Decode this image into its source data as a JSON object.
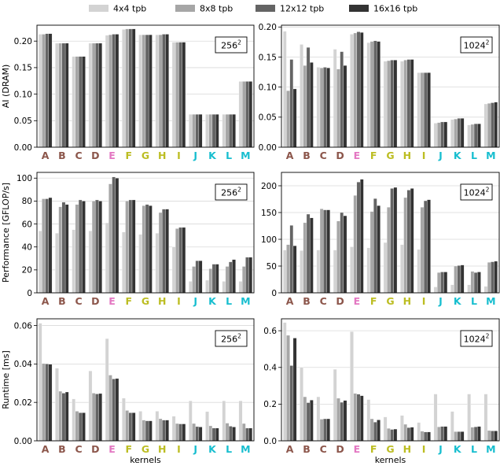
{
  "legend": [
    {
      "label": "4x4 tpb",
      "color": "#d3d3d3"
    },
    {
      "label": "8x8 tpb",
      "color": "#a6a6a6"
    },
    {
      "label": "12x12 tpb",
      "color": "#646464"
    },
    {
      "label": "16x16 tpb",
      "color": "#333333"
    }
  ],
  "x_axis_label": "kernels",
  "row_ylabels": [
    "AI (DRAM)",
    "Performance [GFLOP/s]",
    "Runtime [ms]"
  ],
  "kernel_colors": {
    "A": "#8c564b",
    "B": "#8c564b",
    "C": "#8c564b",
    "D": "#8c564b",
    "E": "#e377c2",
    "F": "#bcbd22",
    "G": "#bcbd22",
    "H": "#bcbd22",
    "I": "#bcbd22",
    "J": "#17becf",
    "K": "#17becf",
    "L": "#17becf",
    "M": "#17becf"
  },
  "chart_data": [
    {
      "type": "bar",
      "title": "256²",
      "size_base": "256",
      "size_exp": "2",
      "ylabel": "AI (DRAM)",
      "xlabel": "",
      "ylim": [
        0,
        0.23
      ],
      "yticks": [
        0.0,
        0.05,
        0.1,
        0.15,
        0.2
      ],
      "ytick_labels": [
        "0.00",
        "0.05",
        "0.10",
        "0.15",
        "0.20"
      ],
      "categories": [
        "A",
        "B",
        "C",
        "D",
        "E",
        "F",
        "G",
        "H",
        "I",
        "J",
        "K",
        "L",
        "M"
      ],
      "series": [
        {
          "name": "4x4 tpb",
          "values": [
            0.213,
            0.196,
            0.171,
            0.196,
            0.211,
            0.222,
            0.212,
            0.212,
            0.198,
            0.062,
            0.062,
            0.062,
            0.124
          ]
        },
        {
          "name": "8x8 tpb",
          "values": [
            0.213,
            0.196,
            0.171,
            0.196,
            0.212,
            0.223,
            0.212,
            0.212,
            0.198,
            0.062,
            0.062,
            0.062,
            0.124
          ]
        },
        {
          "name": "12x12 tpb",
          "values": [
            0.214,
            0.196,
            0.171,
            0.196,
            0.213,
            0.223,
            0.212,
            0.213,
            0.198,
            0.062,
            0.062,
            0.062,
            0.124
          ]
        },
        {
          "name": "16x16 tpb",
          "values": [
            0.214,
            0.196,
            0.171,
            0.196,
            0.213,
            0.223,
            0.212,
            0.213,
            0.198,
            0.062,
            0.062,
            0.062,
            0.124
          ]
        }
      ]
    },
    {
      "type": "bar",
      "title": "1024²",
      "size_base": "1024",
      "size_exp": "2",
      "ylabel": "",
      "xlabel": "",
      "ylim": [
        0,
        0.203
      ],
      "yticks": [
        0.0,
        0.05,
        0.1,
        0.15,
        0.2
      ],
      "ytick_labels": [
        "0.00",
        "0.05",
        "0.10",
        "0.15",
        "0.20"
      ],
      "categories": [
        "A",
        "B",
        "C",
        "D",
        "E",
        "F",
        "G",
        "H",
        "I",
        "J",
        "K",
        "L",
        "M"
      ],
      "series": [
        {
          "name": "4x4 tpb",
          "values": [
            0.193,
            0.171,
            0.133,
            0.163,
            0.188,
            0.174,
            0.143,
            0.143,
            0.124,
            0.04,
            0.046,
            0.037,
            0.072
          ]
        },
        {
          "name": "8x8 tpb",
          "values": [
            0.094,
            0.136,
            0.132,
            0.13,
            0.19,
            0.176,
            0.144,
            0.145,
            0.124,
            0.041,
            0.047,
            0.038,
            0.073
          ]
        },
        {
          "name": "12x12 tpb",
          "values": [
            0.146,
            0.166,
            0.133,
            0.159,
            0.192,
            0.177,
            0.145,
            0.146,
            0.124,
            0.042,
            0.048,
            0.039,
            0.074
          ]
        },
        {
          "name": "16x16 tpb",
          "values": [
            0.097,
            0.141,
            0.132,
            0.136,
            0.191,
            0.176,
            0.145,
            0.146,
            0.124,
            0.042,
            0.048,
            0.039,
            0.075
          ]
        }
      ]
    },
    {
      "type": "bar",
      "title": "256²",
      "size_base": "256",
      "size_exp": "2",
      "ylabel": "Performance [GFLOP/s]",
      "xlabel": "",
      "ylim": [
        0,
        105
      ],
      "yticks": [
        0,
        20,
        40,
        60,
        80,
        100
      ],
      "ytick_labels": [
        "0",
        "20",
        "40",
        "60",
        "80",
        "100"
      ],
      "categories": [
        "A",
        "B",
        "C",
        "D",
        "E",
        "F",
        "G",
        "H",
        "I",
        "J",
        "K",
        "L",
        "M"
      ],
      "series": [
        {
          "name": "4x4 tpb",
          "values": [
            54,
            52,
            55,
            54,
            61,
            53,
            51,
            52,
            40,
            10,
            11,
            10,
            10
          ]
        },
        {
          "name": "8x8 tpb",
          "values": [
            82,
            75,
            77,
            80,
            95,
            80,
            76,
            70,
            56,
            23,
            21,
            23,
            23
          ]
        },
        {
          "name": "12x12 tpb",
          "values": [
            82,
            79,
            81,
            81,
            101,
            81,
            77,
            73,
            57,
            28,
            25,
            27,
            31
          ]
        },
        {
          "name": "16x16 tpb",
          "values": [
            83,
            77,
            80,
            80,
            100,
            81,
            76,
            73,
            57,
            28,
            25,
            29,
            31
          ]
        }
      ]
    },
    {
      "type": "bar",
      "title": "1024²",
      "size_base": "1024",
      "size_exp": "2",
      "ylabel": "",
      "xlabel": "",
      "ylim": [
        0,
        225
      ],
      "yticks": [
        0,
        50,
        100,
        150,
        200
      ],
      "ytick_labels": [
        "0",
        "50",
        "100",
        "150",
        "200"
      ],
      "categories": [
        "A",
        "B",
        "C",
        "D",
        "E",
        "F",
        "G",
        "H",
        "I",
        "J",
        "K",
        "L",
        "M"
      ],
      "series": [
        {
          "name": "4x4 tpb",
          "values": [
            80,
            79,
            80,
            80,
            86,
            84,
            94,
            90,
            81,
            11,
            15,
            15,
            12
          ]
        },
        {
          "name": "8x8 tpb",
          "values": [
            90,
            131,
            157,
            134,
            182,
            152,
            160,
            178,
            160,
            38,
            50,
            40,
            57
          ]
        },
        {
          "name": "12x12 tpb",
          "values": [
            126,
            147,
            155,
            150,
            207,
            176,
            195,
            192,
            172,
            39,
            51,
            38,
            58
          ]
        },
        {
          "name": "16x16 tpb",
          "values": [
            88,
            140,
            155,
            144,
            212,
            163,
            197,
            195,
            174,
            39,
            52,
            39,
            59
          ]
        }
      ]
    },
    {
      "type": "bar",
      "title": "256²",
      "size_base": "256",
      "size_exp": "2",
      "ylabel": "Runtime [ms]",
      "xlabel": "kernels",
      "ylim": [
        0,
        0.0635
      ],
      "yticks": [
        0.0,
        0.02,
        0.04,
        0.06
      ],
      "ytick_labels": [
        "0.00",
        "0.02",
        "0.04",
        "0.06"
      ],
      "categories": [
        "A",
        "B",
        "C",
        "D",
        "E",
        "F",
        "G",
        "H",
        "I",
        "J",
        "K",
        "L",
        "M"
      ],
      "series": [
        {
          "name": "4x4 tpb",
          "values": [
            0.0612,
            0.0378,
            0.0218,
            0.0364,
            0.0532,
            0.0222,
            0.0154,
            0.0154,
            0.0128,
            0.0208,
            0.0152,
            0.0208,
            0.0208
          ]
        },
        {
          "name": "8x8 tpb",
          "values": [
            0.0402,
            0.0258,
            0.0154,
            0.0248,
            0.0342,
            0.0158,
            0.0108,
            0.0115,
            0.009,
            0.009,
            0.0078,
            0.0092,
            0.009
          ]
        },
        {
          "name": "12x12 tpb",
          "values": [
            0.04,
            0.0248,
            0.0146,
            0.0244,
            0.0322,
            0.0146,
            0.0104,
            0.0108,
            0.0088,
            0.0074,
            0.0066,
            0.0076,
            0.0066
          ]
        },
        {
          "name": "16x16 tpb",
          "values": [
            0.0398,
            0.0254,
            0.0146,
            0.0246,
            0.0324,
            0.0146,
            0.0104,
            0.0108,
            0.0088,
            0.0072,
            0.0066,
            0.0072,
            0.0066
          ]
        }
      ]
    },
    {
      "type": "bar",
      "title": "1024²",
      "size_base": "1024",
      "size_exp": "2",
      "ylabel": "",
      "xlabel": "kernels",
      "ylim": [
        0,
        0.665
      ],
      "yticks": [
        0.0,
        0.2,
        0.4,
        0.6
      ],
      "ytick_labels": [
        "0.0",
        "0.2",
        "0.4",
        "0.6"
      ],
      "categories": [
        "A",
        "B",
        "C",
        "D",
        "E",
        "F",
        "G",
        "H",
        "I",
        "J",
        "K",
        "L",
        "M"
      ],
      "series": [
        {
          "name": "4x4 tpb",
          "values": [
            0.645,
            0.4,
            0.24,
            0.39,
            0.595,
            0.225,
            0.13,
            0.138,
            0.1,
            0.255,
            0.16,
            0.255,
            0.255
          ]
        },
        {
          "name": "8x8 tpb",
          "values": [
            0.575,
            0.24,
            0.118,
            0.232,
            0.258,
            0.12,
            0.068,
            0.09,
            0.052,
            0.076,
            0.05,
            0.074,
            0.056
          ]
        },
        {
          "name": "12x12 tpb",
          "values": [
            0.41,
            0.208,
            0.12,
            0.21,
            0.254,
            0.102,
            0.062,
            0.072,
            0.048,
            0.078,
            0.05,
            0.076,
            0.054
          ]
        },
        {
          "name": "16x16 tpb",
          "values": [
            0.56,
            0.222,
            0.12,
            0.22,
            0.246,
            0.114,
            0.064,
            0.074,
            0.048,
            0.078,
            0.05,
            0.078,
            0.054
          ]
        }
      ]
    }
  ]
}
